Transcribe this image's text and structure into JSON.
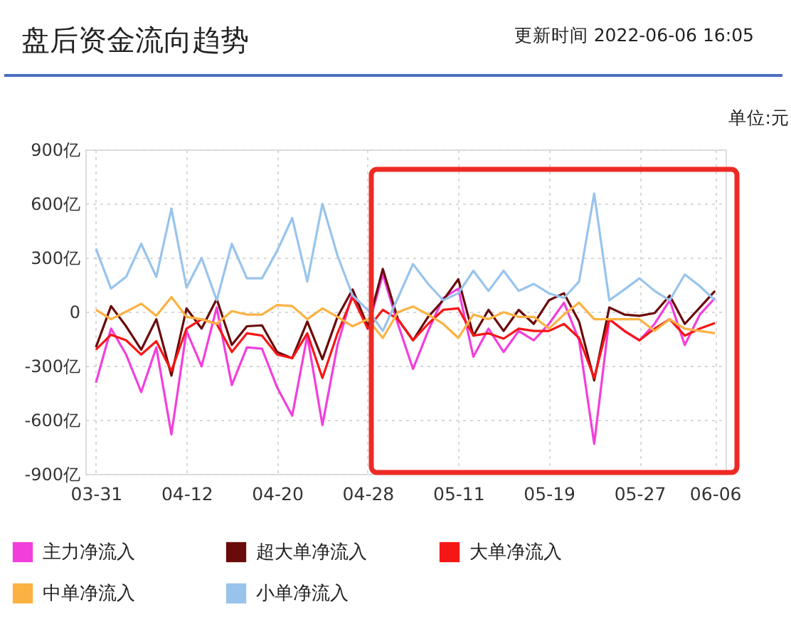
{
  "chart_data": {
    "type": "line",
    "title": "盘后资金流向趋势",
    "subtitle": "更新时间 2022-06-06 16:05",
    "annotations": [
      "单位:元"
    ],
    "categories": [
      "03-31",
      null,
      null,
      null,
      null,
      null,
      "04-12",
      null,
      null,
      null,
      null,
      null,
      "04-20",
      null,
      null,
      null,
      null,
      null,
      "04-28",
      null,
      null,
      null,
      null,
      null,
      "05-11",
      null,
      null,
      null,
      null,
      null,
      "05-19",
      null,
      null,
      null,
      null,
      null,
      "05-27",
      null,
      null,
      null,
      null,
      "06-06"
    ],
    "series": [
      {
        "name": "主力净流入",
        "color": "#f23fdc",
        "values": [
          -394,
          -94,
          -238,
          -446,
          -198,
          -681,
          -107,
          -303,
          23,
          -407,
          -198,
          -206,
          -420,
          -577,
          -133,
          -629,
          -185,
          102,
          -94,
          206,
          -68,
          -318,
          -107,
          76,
          128,
          -250,
          -94,
          -224,
          -107,
          -159,
          -68,
          50,
          -159,
          -733,
          -42,
          -107,
          -159,
          -68,
          63,
          -185,
          -16,
          76
        ]
      },
      {
        "name": "超大单净流入",
        "color": "#6b0a0a",
        "values": [
          -198,
          31,
          -81,
          -211,
          -42,
          -355,
          18,
          -94,
          70,
          -185,
          -81,
          -76,
          -224,
          -258,
          -55,
          -264,
          -29,
          123,
          -81,
          237,
          -42,
          -159,
          -29,
          63,
          180,
          -133,
          10,
          -107,
          10,
          -68,
          63,
          102,
          -55,
          -381,
          23,
          -16,
          -23,
          -8,
          89,
          -68,
          23,
          115
        ]
      },
      {
        "name": "大单净流入",
        "color": "#f71616",
        "values": [
          -211,
          -128,
          -159,
          -238,
          -164,
          -329,
          -94,
          -42,
          -68,
          -224,
          -120,
          -133,
          -238,
          -258,
          -120,
          -368,
          -120,
          81,
          -94,
          10,
          -42,
          -159,
          -68,
          10,
          18,
          -133,
          -120,
          -150,
          -94,
          -107,
          -107,
          -68,
          -146,
          -368,
          -42,
          -107,
          -159,
          -94,
          -42,
          -133,
          -94,
          -63
        ]
      },
      {
        "name": "中单净流入",
        "color": "#fbb243",
        "values": [
          10,
          -42,
          0,
          44,
          -23,
          81,
          -29,
          -42,
          -68,
          3,
          -16,
          -16,
          37,
          31,
          -42,
          18,
          -29,
          -81,
          -42,
          -146,
          -3,
          29,
          -16,
          -68,
          -146,
          -16,
          -42,
          -3,
          -29,
          -29,
          -94,
          -16,
          50,
          -42,
          -42,
          -42,
          -42,
          -107,
          -42,
          -94,
          -107,
          -120
        ]
      },
      {
        "name": "小单净流入",
        "color": "#98c4ec",
        "values": [
          350,
          128,
          193,
          376,
          193,
          572,
          133,
          298,
          63,
          376,
          185,
          185,
          337,
          519,
          167,
          598,
          311,
          89,
          10,
          -107,
          76,
          264,
          154,
          63,
          102,
          227,
          115,
          227,
          115,
          154,
          102,
          76,
          167,
          655,
          63,
          123,
          185,
          115,
          63,
          206,
          141,
          63
        ]
      }
    ],
    "ylim": [
      -900,
      900
    ],
    "yticks": [
      {
        "value": -900,
        "label": "-900亿"
      },
      {
        "value": -600,
        "label": "-600亿"
      },
      {
        "value": -300,
        "label": "-300亿"
      },
      {
        "value": 0,
        "label": "0"
      },
      {
        "value": 300,
        "label": "300亿"
      },
      {
        "value": 600,
        "label": "600亿"
      },
      {
        "value": 900,
        "label": "900亿"
      }
    ],
    "grid": true,
    "legend": "bottom",
    "marker": "none",
    "line_style": "solid"
  }
}
